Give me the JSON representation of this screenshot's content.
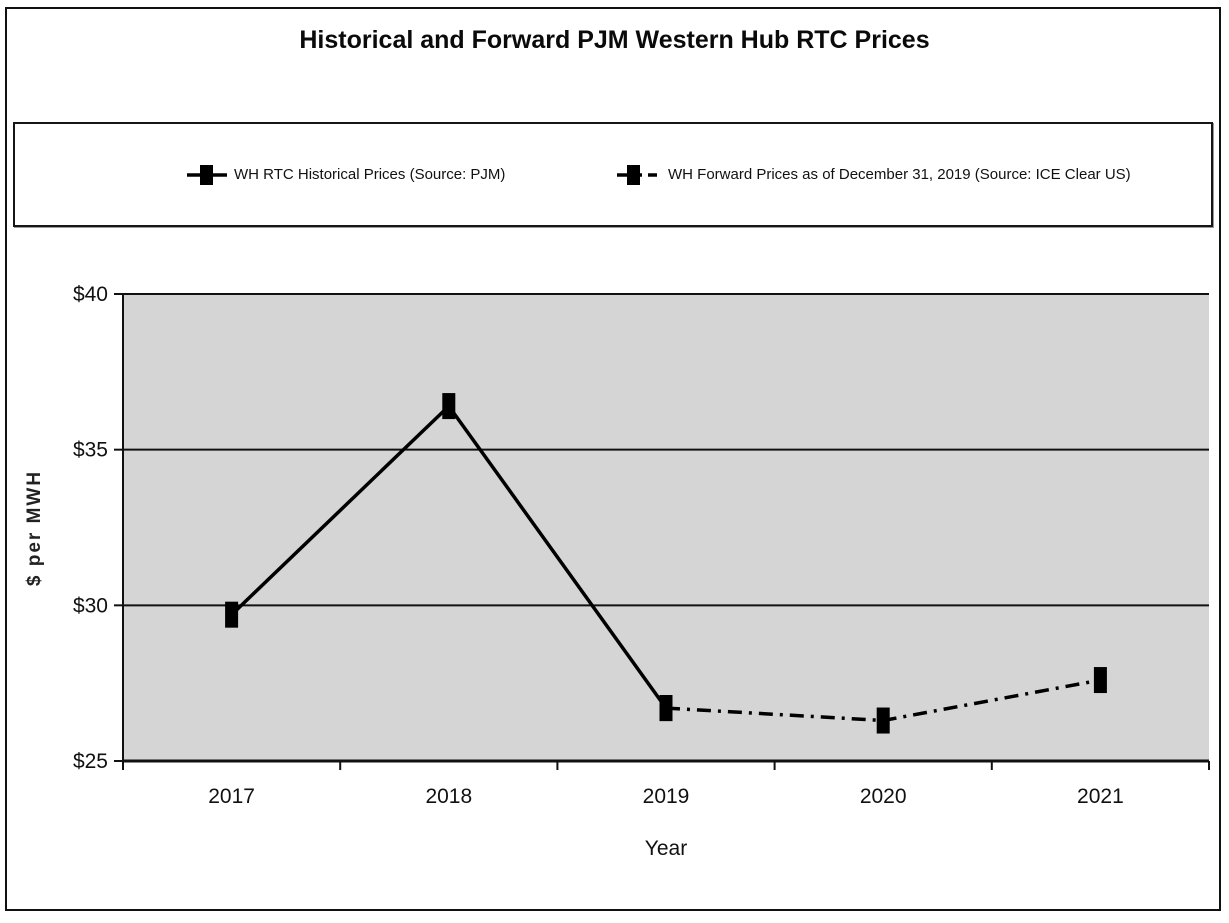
{
  "title": "Historical and Forward PJM Western Hub RTC Prices",
  "legend": {
    "items": [
      {
        "label": "WH RTC Historical Prices (Source: PJM)",
        "line_style": "solid",
        "marker": "square"
      },
      {
        "label": "WH Forward Prices as of December 31, 2019 (Source: ICE Clear US)",
        "line_style": "dash-dot",
        "marker": "square"
      }
    ]
  },
  "chart_data": {
    "type": "line",
    "title": "Historical and Forward PJM Western Hub RTC Prices",
    "categories": [
      "2017",
      "2018",
      "2019",
      "2020",
      "2021"
    ],
    "series": [
      {
        "name": "WH RTC Historical Prices (Source: PJM)",
        "line_style": "solid",
        "marker": "square",
        "values": [
          29.7,
          36.4,
          26.7,
          null,
          null
        ]
      },
      {
        "name": "WH Forward Prices as of December 31, 2019 (Source: ICE Clear US)",
        "line_style": "dash-dot",
        "marker": "square",
        "values": [
          null,
          null,
          26.7,
          26.3,
          27.6
        ]
      }
    ],
    "xlabel": "Year",
    "ylabel": "$ per MWH",
    "ylim": [
      25,
      40
    ],
    "y_ticks": [
      40,
      35,
      30,
      25
    ],
    "y_tick_labels": [
      "$40",
      "$35",
      "$30",
      "$25"
    ],
    "grid": "horizontal",
    "legend_position": "top",
    "colors": {
      "line": "#000000",
      "plot_background": "#d5d5d5",
      "axis": "#111111",
      "text": "#111111"
    }
  }
}
